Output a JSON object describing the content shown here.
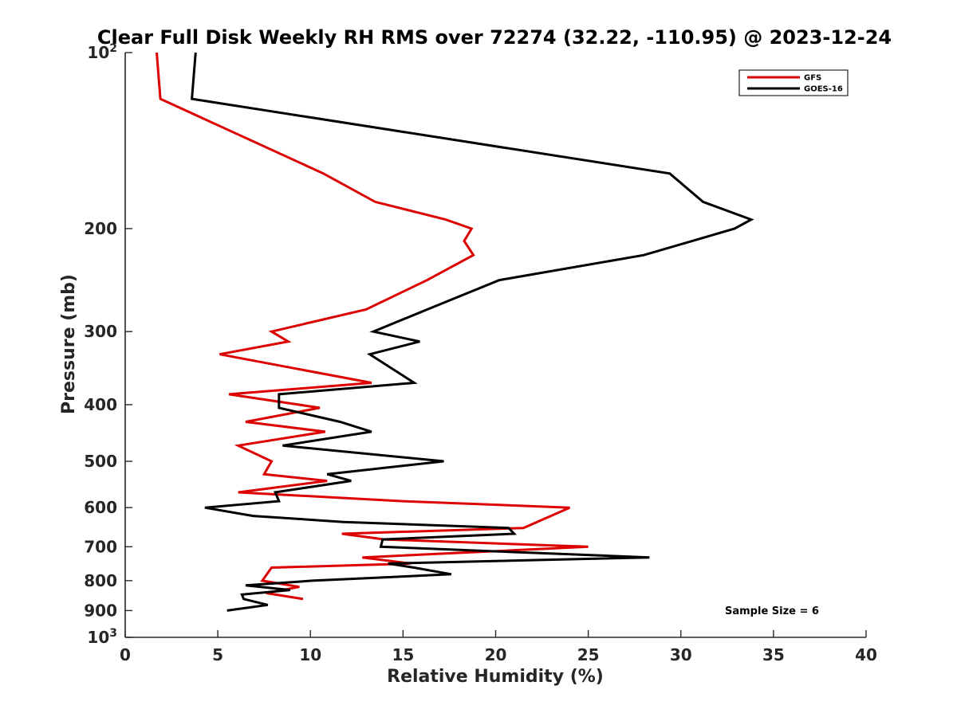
{
  "chart_data": {
    "type": "line",
    "title": "Clear Full Disk Weekly RH RMS over 72274 (32.22, -110.95) @ 2023-12-24",
    "xlabel": "Relative Humidity (%)",
    "ylabel": "Pressure (mb)",
    "xlim": [
      0,
      40
    ],
    "ylim": [
      100,
      1000
    ],
    "y_scale": "log",
    "y_reversed": true,
    "x_ticks": [
      "0",
      "5",
      "10",
      "15",
      "20",
      "25",
      "30",
      "35",
      "40"
    ],
    "x_tick_values": [
      0,
      5,
      10,
      15,
      20,
      25,
      30,
      35,
      40
    ],
    "y_tick_values": [
      100,
      200,
      300,
      400,
      500,
      600,
      700,
      800,
      900,
      1000
    ],
    "y_tick_labels": [
      {
        "base": "10",
        "exp": "2"
      },
      {
        "base": "200",
        "exp": ""
      },
      {
        "base": "300",
        "exp": ""
      },
      {
        "base": "400",
        "exp": ""
      },
      {
        "base": "500",
        "exp": ""
      },
      {
        "base": "600",
        "exp": ""
      },
      {
        "base": "700",
        "exp": ""
      },
      {
        "base": "800",
        "exp": ""
      },
      {
        "base": "900",
        "exp": ""
      },
      {
        "base": "10",
        "exp": "3"
      }
    ],
    "grid": false,
    "legend_position": "top-right",
    "annotation": "Sample Size = 6",
    "series": [
      {
        "name": "GFS",
        "color": "#dd0000",
        "points": [
          [
            1.7,
            100
          ],
          [
            1.9,
            120
          ],
          [
            10.7,
            161
          ],
          [
            13.5,
            180
          ],
          [
            17.3,
            193
          ],
          [
            18.7,
            200
          ],
          [
            18.3,
            210
          ],
          [
            18.8,
            222
          ],
          [
            16.3,
            245
          ],
          [
            13.0,
            275
          ],
          [
            7.9,
            300
          ],
          [
            8.8,
            312
          ],
          [
            5.1,
            328
          ],
          [
            13.3,
            367
          ],
          [
            5.6,
            384
          ],
          [
            10.5,
            405
          ],
          [
            6.5,
            428
          ],
          [
            10.8,
            445
          ],
          [
            6.1,
            470
          ],
          [
            7.9,
            500
          ],
          [
            7.5,
            526
          ],
          [
            10.9,
            540
          ],
          [
            6.1,
            565
          ],
          [
            15.0,
            585
          ],
          [
            24.0,
            600
          ],
          [
            21.5,
            650
          ],
          [
            11.7,
            665
          ],
          [
            14.0,
            680
          ],
          [
            25.0,
            700
          ],
          [
            12.8,
            730
          ],
          [
            15.4,
            748
          ],
          [
            7.9,
            760
          ],
          [
            7.4,
            800
          ],
          [
            9.4,
            820
          ],
          [
            7.6,
            840
          ],
          [
            9.6,
            860
          ]
        ]
      },
      {
        "name": "GOES-16",
        "color": "#000000",
        "points": [
          [
            3.8,
            100
          ],
          [
            3.6,
            120
          ],
          [
            29.4,
            161
          ],
          [
            31.2,
            180
          ],
          [
            33.8,
            193
          ],
          [
            32.9,
            200
          ],
          [
            28.0,
            222
          ],
          [
            20.2,
            245
          ],
          [
            16.3,
            275
          ],
          [
            13.4,
            300
          ],
          [
            15.9,
            312
          ],
          [
            13.2,
            328
          ],
          [
            15.6,
            367
          ],
          [
            8.3,
            384
          ],
          [
            8.3,
            405
          ],
          [
            11.6,
            428
          ],
          [
            13.3,
            445
          ],
          [
            8.5,
            470
          ],
          [
            17.2,
            500
          ],
          [
            10.9,
            526
          ],
          [
            12.2,
            540
          ],
          [
            8.1,
            565
          ],
          [
            8.3,
            585
          ],
          [
            4.3,
            600
          ],
          [
            6.9,
            620
          ],
          [
            11.8,
            635
          ],
          [
            20.7,
            650
          ],
          [
            21.0,
            665
          ],
          [
            13.9,
            680
          ],
          [
            13.8,
            700
          ],
          [
            28.3,
            730
          ],
          [
            14.2,
            748
          ],
          [
            15.6,
            760
          ],
          [
            17.6,
            780
          ],
          [
            10.1,
            800
          ],
          [
            6.5,
            815
          ],
          [
            8.9,
            830
          ],
          [
            6.3,
            845
          ],
          [
            6.4,
            860
          ],
          [
            7.7,
            880
          ],
          [
            5.5,
            900
          ]
        ]
      }
    ]
  }
}
